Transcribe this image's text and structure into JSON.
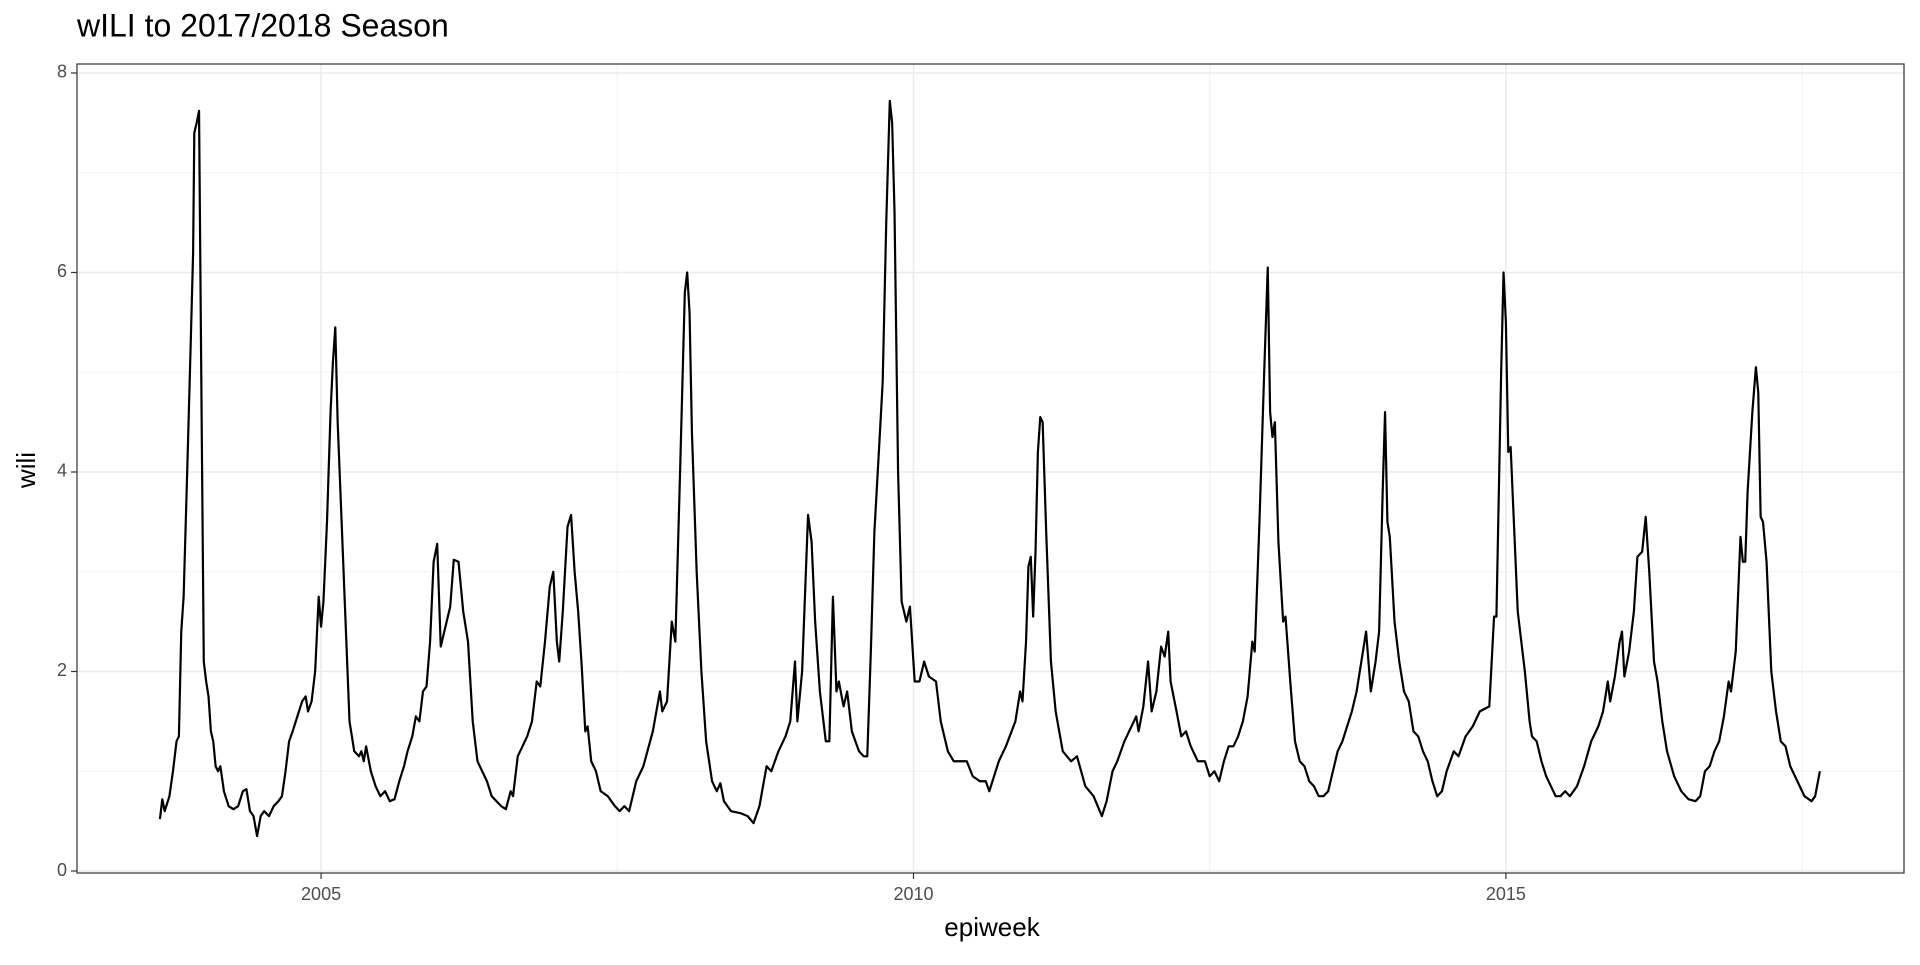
{
  "chart_data": {
    "type": "line",
    "title": "wILI to 2017/2018 Season",
    "xlabel": "epiweek",
    "ylabel": "wili",
    "color": "#000000",
    "grid": true,
    "xlim": [
      2002.94,
      2018.36
    ],
    "xticks": [
      2005,
      2010,
      2015
    ],
    "x_minor_grid": [
      2007.5,
      2012.5,
      2017.5
    ],
    "ylim": [
      -0.02,
      8.09
    ],
    "yticks": [
      0,
      2,
      4,
      6,
      8
    ],
    "y_minor_grid": [
      1,
      3,
      5,
      7
    ],
    "x": [
      2003.64,
      2003.66,
      2003.68,
      2003.72,
      2003.75,
      2003.78,
      2003.8,
      2003.82,
      2003.84,
      2003.87,
      2003.9,
      2003.92,
      2003.93,
      2003.95,
      2003.97,
      2003.99,
      2004.01,
      2004.03,
      2004.05,
      2004.07,
      2004.09,
      2004.11,
      2004.13,
      2004.15,
      2004.18,
      2004.22,
      2004.26,
      2004.3,
      2004.34,
      2004.37,
      2004.4,
      2004.43,
      2004.46,
      2004.49,
      2004.52,
      2004.56,
      2004.6,
      2004.64,
      2004.67,
      2004.7,
      2004.73,
      2004.76,
      2004.8,
      2004.84,
      2004.87,
      2004.89,
      2004.92,
      2004.95,
      2004.98,
      2005.0,
      2005.02,
      2005.05,
      2005.08,
      2005.1,
      2005.12,
      2005.14,
      2005.17,
      2005.2,
      2005.24,
      2005.28,
      2005.32,
      2005.34,
      2005.36,
      2005.38,
      2005.42,
      2005.46,
      2005.5,
      2005.54,
      2005.58,
      2005.62,
      2005.66,
      2005.7,
      2005.73,
      2005.77,
      2005.8,
      2005.83,
      2005.86,
      2005.89,
      2005.92,
      2005.95,
      2005.98,
      2006.01,
      2006.05,
      2006.09,
      2006.12,
      2006.16,
      2006.2,
      2006.24,
      2006.28,
      2006.32,
      2006.36,
      2006.4,
      2006.44,
      2006.48,
      2006.52,
      2006.56,
      2006.6,
      2006.62,
      2006.66,
      2006.7,
      2006.74,
      2006.78,
      2006.82,
      2006.85,
      2006.89,
      2006.93,
      2006.96,
      2006.99,
      2007.01,
      2007.04,
      2007.08,
      2007.11,
      2007.14,
      2007.17,
      2007.2,
      2007.23,
      2007.25,
      2007.28,
      2007.32,
      2007.36,
      2007.42,
      2007.48,
      2007.52,
      2007.56,
      2007.6,
      2007.66,
      2007.72,
      2007.8,
      2007.86,
      2007.88,
      2007.92,
      2007.96,
      2007.99,
      2008.03,
      2008.07,
      2008.09,
      2008.11,
      2008.13,
      2008.17,
      2008.21,
      2008.25,
      2008.3,
      2008.34,
      2008.37,
      2008.4,
      2008.46,
      2008.54,
      2008.6,
      2008.65,
      2008.7,
      2008.76,
      2008.8,
      2008.86,
      2008.92,
      2008.96,
      2009.0,
      2009.02,
      2009.06,
      2009.11,
      2009.14,
      2009.17,
      2009.21,
      2009.26,
      2009.29,
      2009.32,
      2009.35,
      2009.37,
      2009.41,
      2009.44,
      2009.48,
      2009.54,
      2009.58,
      2009.61,
      2009.64,
      2009.67,
      2009.71,
      2009.74,
      2009.77,
      2009.8,
      2009.82,
      2009.84,
      2009.87,
      2009.9,
      2009.94,
      2009.97,
      2010.01,
      2010.05,
      2010.09,
      2010.13,
      2010.19,
      2010.23,
      2010.29,
      2010.34,
      2010.4,
      2010.45,
      2010.5,
      2010.56,
      2010.61,
      2010.64,
      2010.68,
      2010.72,
      2010.78,
      2010.86,
      2010.9,
      2010.92,
      2010.95,
      2010.97,
      2010.99,
      2011.01,
      2011.03,
      2011.05,
      2011.07,
      2011.09,
      2011.12,
      2011.16,
      2011.2,
      2011.26,
      2011.33,
      2011.38,
      2011.45,
      2011.52,
      2011.59,
      2011.63,
      2011.68,
      2011.72,
      2011.78,
      2011.84,
      2011.88,
      2011.9,
      2011.94,
      2011.98,
      2012.01,
      2012.05,
      2012.09,
      2012.12,
      2012.15,
      2012.17,
      2012.22,
      2012.26,
      2012.3,
      2012.34,
      2012.4,
      2012.46,
      2012.5,
      2012.54,
      2012.58,
      2012.62,
      2012.66,
      2012.7,
      2012.74,
      2012.78,
      2012.82,
      2012.86,
      2012.88,
      2012.92,
      2012.96,
      2012.99,
      2013.01,
      2013.03,
      2013.05,
      2013.08,
      2013.12,
      2013.14,
      2013.18,
      2013.22,
      2013.26,
      2013.3,
      2013.34,
      2013.38,
      2013.42,
      2013.46,
      2013.5,
      2013.54,
      2013.58,
      2013.62,
      2013.66,
      2013.7,
      2013.74,
      2013.78,
      2013.82,
      2013.86,
      2013.9,
      2013.93,
      2013.96,
      2013.98,
      2014.0,
      2014.02,
      2014.06,
      2014.1,
      2014.14,
      2014.18,
      2014.22,
      2014.26,
      2014.3,
      2014.34,
      2014.38,
      2014.42,
      2014.46,
      2014.5,
      2014.56,
      2014.6,
      2014.66,
      2014.72,
      2014.78,
      2014.86,
      2014.9,
      2014.92,
      2014.96,
      2014.98,
      2015.0,
      2015.02,
      2015.04,
      2015.06,
      2015.1,
      2015.12,
      2015.16,
      2015.2,
      2015.22,
      2015.26,
      2015.3,
      2015.34,
      2015.38,
      2015.42,
      2015.46,
      2015.5,
      2015.54,
      2015.6,
      2015.66,
      2015.72,
      2015.78,
      2015.82,
      2015.86,
      2015.88,
      2015.92,
      2015.96,
      2015.98,
      2016.0,
      2016.04,
      2016.08,
      2016.11,
      2016.15,
      2016.18,
      2016.21,
      2016.25,
      2016.28,
      2016.32,
      2016.36,
      2016.42,
      2016.48,
      2016.54,
      2016.6,
      2016.64,
      2016.68,
      2016.72,
      2016.76,
      2016.8,
      2016.84,
      2016.88,
      2016.9,
      2016.94,
      2016.98,
      2017.0,
      2017.02,
      2017.04,
      2017.08,
      2017.11,
      2017.13,
      2017.15,
      2017.17,
      2017.2,
      2017.24,
      2017.28,
      2017.32,
      2017.36,
      2017.4,
      2017.46,
      2017.52,
      2017.58,
      2017.61,
      2017.65
    ],
    "values": [
      0.52,
      0.72,
      0.6,
      0.75,
      1.0,
      1.3,
      1.35,
      2.4,
      2.75,
      4.0,
      5.3,
      6.2,
      7.4,
      7.5,
      7.62,
      4.8,
      2.1,
      1.9,
      1.75,
      1.4,
      1.3,
      1.05,
      1.0,
      1.05,
      0.8,
      0.65,
      0.62,
      0.65,
      0.8,
      0.82,
      0.6,
      0.55,
      0.35,
      0.55,
      0.6,
      0.55,
      0.65,
      0.7,
      0.75,
      1.0,
      1.3,
      1.4,
      1.55,
      1.7,
      1.75,
      1.6,
      1.7,
      2.0,
      2.75,
      2.45,
      2.7,
      3.5,
      4.6,
      5.1,
      5.45,
      4.5,
      3.6,
      2.7,
      1.5,
      1.2,
      1.15,
      1.2,
      1.1,
      1.25,
      1.0,
      0.85,
      0.75,
      0.8,
      0.7,
      0.72,
      0.9,
      1.05,
      1.2,
      1.35,
      1.55,
      1.5,
      1.8,
      1.85,
      2.3,
      3.1,
      3.28,
      2.25,
      2.45,
      2.65,
      3.12,
      3.1,
      2.6,
      2.3,
      1.5,
      1.1,
      1.0,
      0.9,
      0.75,
      0.7,
      0.65,
      0.62,
      0.8,
      0.75,
      1.15,
      1.25,
      1.35,
      1.5,
      1.9,
      1.85,
      2.3,
      2.85,
      3.0,
      2.3,
      2.1,
      2.6,
      3.45,
      3.57,
      3.0,
      2.6,
      2.05,
      1.4,
      1.45,
      1.1,
      1.0,
      0.8,
      0.75,
      0.65,
      0.6,
      0.65,
      0.6,
      0.9,
      1.05,
      1.4,
      1.8,
      1.6,
      1.7,
      2.5,
      2.3,
      4.0,
      5.8,
      6.0,
      5.6,
      4.4,
      3.0,
      2.0,
      1.3,
      0.9,
      0.8,
      0.88,
      0.7,
      0.6,
      0.58,
      0.55,
      0.48,
      0.65,
      1.05,
      1.0,
      1.2,
      1.35,
      1.5,
      2.1,
      1.5,
      2.0,
      3.57,
      3.3,
      2.5,
      1.8,
      1.3,
      1.3,
      2.75,
      1.8,
      1.9,
      1.65,
      1.8,
      1.4,
      1.2,
      1.15,
      1.15,
      2.2,
      3.4,
      4.25,
      4.9,
      6.5,
      7.72,
      7.5,
      6.6,
      4.0,
      2.7,
      2.5,
      2.65,
      1.9,
      1.9,
      2.1,
      1.95,
      1.9,
      1.5,
      1.2,
      1.1,
      1.1,
      1.1,
      0.95,
      0.9,
      0.9,
      0.8,
      0.95,
      1.1,
      1.25,
      1.5,
      1.8,
      1.7,
      2.3,
      3.05,
      3.15,
      2.55,
      3.2,
      4.2,
      4.55,
      4.5,
      3.4,
      2.1,
      1.6,
      1.2,
      1.1,
      1.15,
      0.85,
      0.75,
      0.55,
      0.7,
      1.0,
      1.1,
      1.3,
      1.45,
      1.55,
      1.4,
      1.65,
      2.1,
      1.6,
      1.8,
      2.25,
      2.15,
      2.4,
      1.9,
      1.6,
      1.35,
      1.4,
      1.25,
      1.1,
      1.1,
      0.95,
      1.0,
      0.9,
      1.1,
      1.25,
      1.25,
      1.35,
      1.5,
      1.75,
      2.3,
      2.2,
      3.5,
      5.0,
      6.05,
      4.6,
      4.35,
      4.5,
      3.3,
      2.5,
      2.55,
      1.9,
      1.3,
      1.1,
      1.05,
      0.9,
      0.85,
      0.75,
      0.75,
      0.8,
      1.0,
      1.2,
      1.3,
      1.45,
      1.6,
      1.8,
      2.1,
      2.4,
      1.8,
      2.1,
      2.4,
      3.8,
      4.6,
      3.5,
      3.35,
      2.5,
      2.1,
      1.8,
      1.7,
      1.4,
      1.35,
      1.2,
      1.1,
      0.9,
      0.75,
      0.8,
      1.0,
      1.2,
      1.15,
      1.35,
      1.45,
      1.6,
      1.65,
      2.55,
      2.55,
      5.0,
      6.0,
      5.5,
      4.2,
      4.25,
      3.7,
      2.6,
      2.4,
      2.0,
      1.5,
      1.35,
      1.3,
      1.1,
      0.95,
      0.85,
      0.75,
      0.75,
      0.8,
      0.75,
      0.85,
      1.05,
      1.3,
      1.45,
      1.6,
      1.9,
      1.7,
      1.95,
      2.3,
      2.4,
      1.95,
      2.2,
      2.6,
      3.15,
      3.2,
      3.55,
      3.0,
      2.1,
      1.9,
      1.5,
      1.2,
      0.95,
      0.8,
      0.72,
      0.7,
      0.75,
      1.0,
      1.05,
      1.2,
      1.3,
      1.55,
      1.9,
      1.8,
      2.2,
      3.35,
      3.1,
      3.1,
      3.8,
      4.6,
      5.05,
      4.8,
      3.55,
      3.5,
      3.1,
      2.0,
      1.6,
      1.3,
      1.25,
      1.05,
      0.9,
      0.75,
      0.7,
      0.75,
      1.0
    ]
  }
}
